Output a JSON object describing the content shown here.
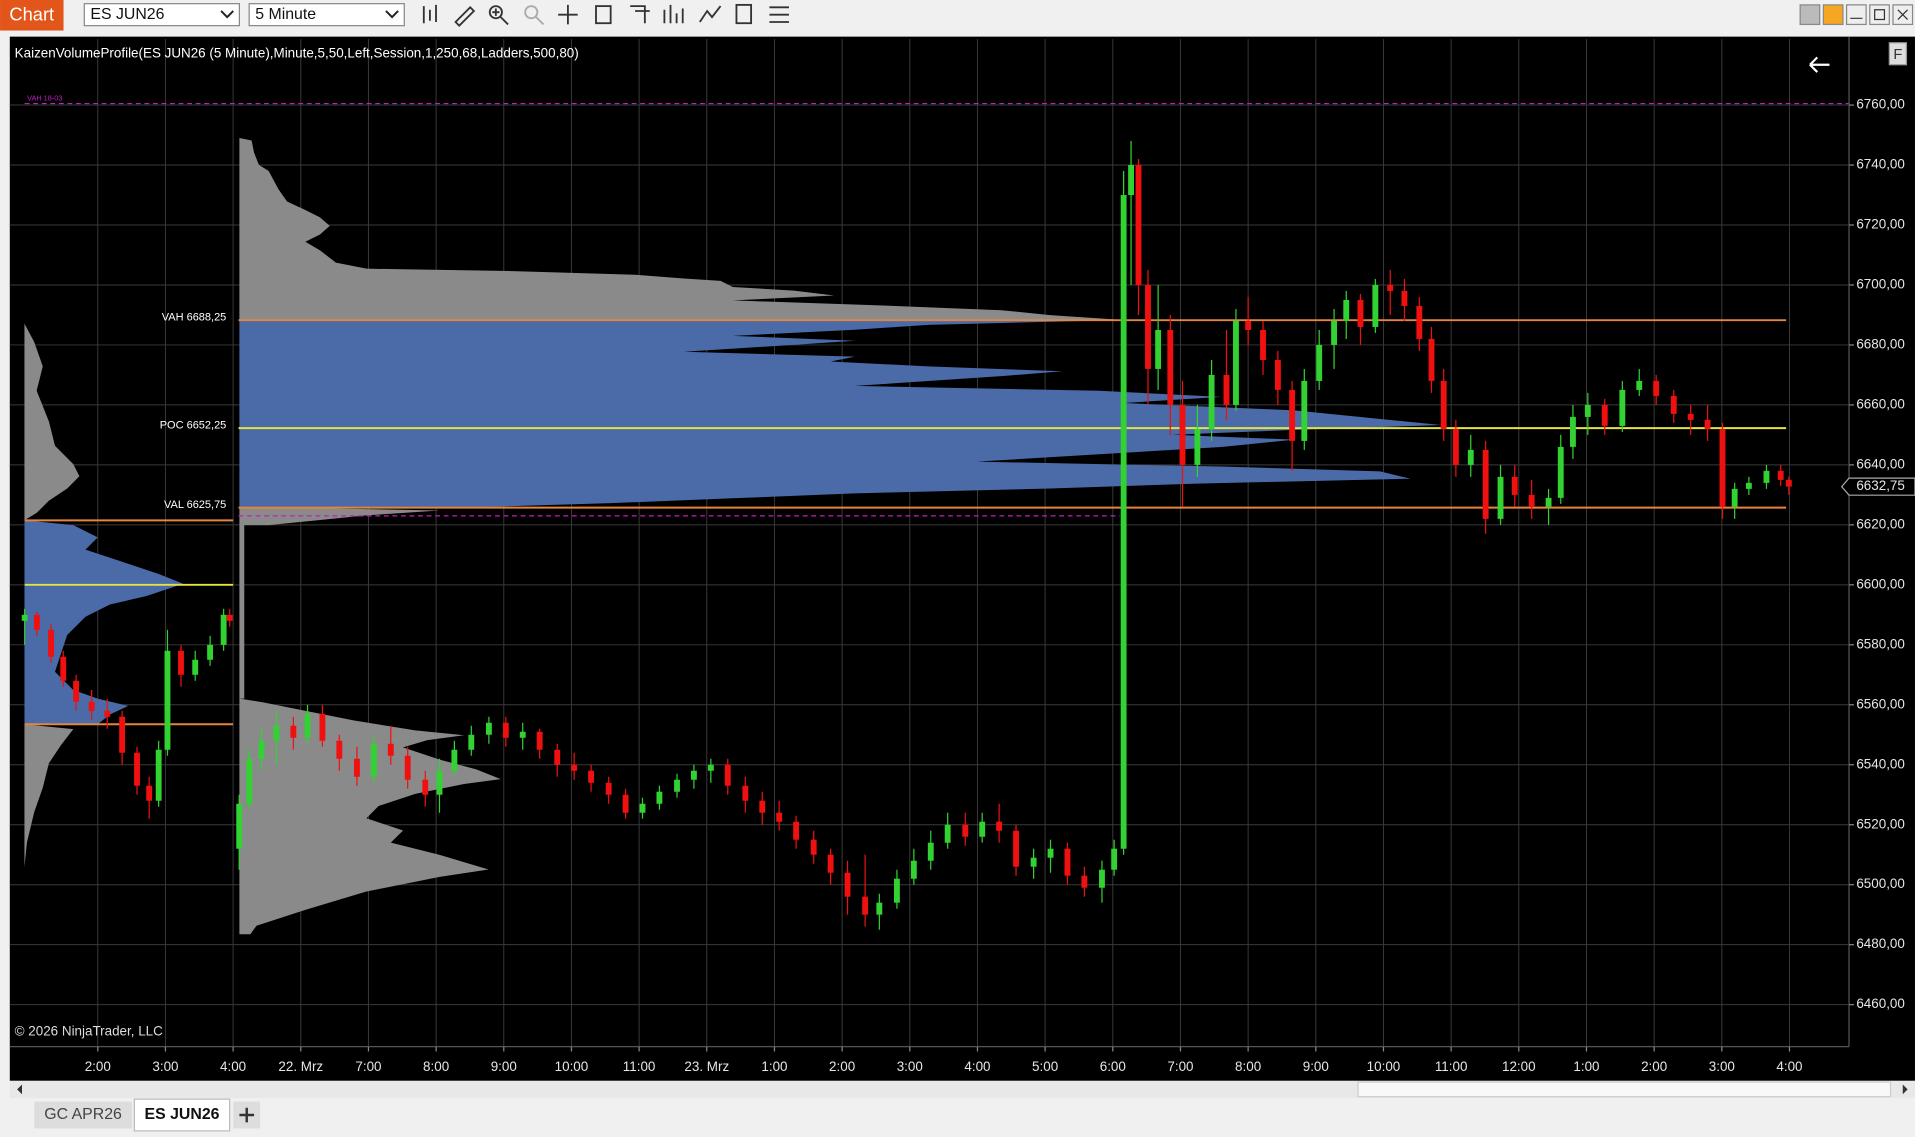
{
  "toolbar": {
    "tab": "Chart",
    "instrument": "ES JUN26",
    "interval": "5 Minute"
  },
  "side_button": "F",
  "chart_data": {
    "type": "candlestick",
    "title": "KaizenVolumeProfile(ES JUN26 (5 Minute),Minute,5,50,Left,Session,1,250,68,Ladders,500,80)",
    "copyright": "© 2026 NinjaTrader, LLC",
    "up_color": "#32d232",
    "down_color": "#f01010",
    "x": [
      -1.08,
      -0.9,
      -0.69,
      -0.51,
      -0.32,
      -0.09,
      0.14,
      0.36,
      0.58,
      0.76,
      0.9,
      1.03,
      1.23,
      1.44,
      1.66,
      1.86,
      1.95,
      2.09,
      2.24,
      2.42,
      2.64,
      2.89,
      3.1,
      3.32,
      3.57,
      3.83,
      4.08,
      4.33,
      4.58,
      4.84,
      5.05,
      5.27,
      5.52,
      5.78,
      6.03,
      6.28,
      6.53,
      6.79,
      7.04,
      7.29,
      7.55,
      7.8,
      8.05,
      8.3,
      8.56,
      8.81,
      9.06,
      9.31,
      9.57,
      9.82,
      10.07,
      10.32,
      10.58,
      10.83,
      11.08,
      11.34,
      11.55,
      11.81,
      12.06,
      12.31,
      12.56,
      12.82,
      13.07,
      13.32,
      13.57,
      13.83,
      14.08,
      14.33,
      14.58,
      14.84,
      15.02,
      15.16,
      15.27,
      15.38,
      15.52,
      15.67,
      15.85,
      16.03,
      16.25,
      16.46,
      16.68,
      16.82,
      17.0,
      17.22,
      17.44,
      17.65,
      17.83,
      18.05,
      18.27,
      18.45,
      18.66,
      18.88,
      19.1,
      19.31,
      19.53,
      19.71,
      19.89,
      20.07,
      20.29,
      20.51,
      20.73,
      20.94,
      21.19,
      21.44,
      21.62,
      21.8,
      22.02,
      22.27,
      22.53,
      22.78,
      23.03,
      23.29,
      23.54,
      23.79,
      24.01,
      24.19,
      24.4,
      24.66,
      24.87,
      24.99
    ],
    "open": [
      6588,
      6590,
      6585,
      6576,
      6568,
      6561,
      6558,
      6556,
      6544,
      6533,
      6528,
      6545,
      6578,
      6570,
      6575,
      6580,
      6590,
      6512,
      6527,
      6542,
      6548,
      6553,
      6549,
      6557,
      6548,
      6542,
      6536,
      6547,
      6543,
      6535,
      6530,
      6538,
      6545,
      6550,
      6554,
      6549,
      6551,
      6545,
      6540,
      6538,
      6534,
      6530,
      6524,
      6527,
      6531,
      6535,
      6538,
      6540,
      6533,
      6528,
      6524,
      6521,
      6515,
      6510,
      6504,
      6496,
      6490,
      6494,
      6502,
      6508,
      6514,
      6520,
      6516,
      6521,
      6518,
      6506,
      6509,
      6512,
      6503,
      6499,
      6505,
      6512,
      6730,
      6740,
      6700,
      6672,
      6685,
      6660,
      6640,
      6652,
      6670,
      6660,
      6688,
      6685,
      6675,
      6665,
      6648,
      6668,
      6680,
      6688,
      6695,
      6686,
      6700,
      6698,
      6693,
      6682,
      6668,
      6652,
      6640,
      6645,
      6622,
      6636,
      6630,
      6626,
      6629,
      6646,
      6656,
      6660,
      6653,
      6665,
      6668,
      6663,
      6657,
      6655,
      6652,
      6626,
      6632,
      6634,
      6638,
      6635
    ],
    "high": [
      6592,
      6591,
      6587,
      6578,
      6570,
      6565,
      6562,
      6558,
      6546,
      6536,
      6548,
      6585,
      6580,
      6578,
      6583,
      6592,
      6592,
      6530,
      6545,
      6552,
      6558,
      6556,
      6560,
      6560,
      6550,
      6546,
      6550,
      6553,
      6546,
      6538,
      6542,
      6548,
      6553,
      6556,
      6556,
      6554,
      6552,
      6547,
      6544,
      6540,
      6536,
      6532,
      6529,
      6533,
      6537,
      6540,
      6542,
      6542,
      6536,
      6531,
      6528,
      6523,
      6518,
      6512,
      6508,
      6510,
      6497,
      6505,
      6512,
      6518,
      6524,
      6524,
      6524,
      6527,
      6520,
      6512,
      6515,
      6514,
      6506,
      6508,
      6515,
      6738,
      6748,
      6742,
      6705,
      6700,
      6690,
      6668,
      6660,
      6675,
      6685,
      6692,
      6696,
      6688,
      6678,
      6668,
      6672,
      6685,
      6692,
      6698,
      6697,
      6702,
      6705,
      6702,
      6696,
      6686,
      6672,
      6655,
      6650,
      6648,
      6640,
      6640,
      6635,
      6632,
      6650,
      6660,
      6664,
      6662,
      6668,
      6672,
      6670,
      6665,
      6660,
      6660,
      6654,
      6634,
      6636,
      6640,
      6640,
      6636
    ],
    "low": [
      6580,
      6583,
      6574,
      6566,
      6558,
      6555,
      6552,
      6540,
      6530,
      6522,
      6526,
      6543,
      6566,
      6568,
      6573,
      6578,
      6586,
      6505,
      6525,
      6538,
      6540,
      6545,
      6547,
      6546,
      6538,
      6533,
      6534,
      6540,
      6532,
      6526,
      6524,
      6536,
      6543,
      6547,
      6546,
      6545,
      6542,
      6536,
      6535,
      6531,
      6527,
      6522,
      6522,
      6525,
      6529,
      6532,
      6534,
      6530,
      6524,
      6520,
      6518,
      6512,
      6507,
      6500,
      6490,
      6486,
      6485,
      6492,
      6500,
      6505,
      6512,
      6513,
      6514,
      6514,
      6503,
      6502,
      6504,
      6500,
      6496,
      6494,
      6503,
      6510,
      6700,
      6690,
      6660,
      6665,
      6650,
      6626,
      6636,
      6648,
      6655,
      6658,
      6680,
      6670,
      6660,
      6638,
      6645,
      6665,
      6672,
      6682,
      6680,
      6684,
      6690,
      6688,
      6678,
      6664,
      6648,
      6636,
      6636,
      6617,
      6620,
      6626,
      6622,
      6620,
      6627,
      6642,
      6650,
      6650,
      6651,
      6663,
      6660,
      6654,
      6650,
      6648,
      6622,
      6622,
      6630,
      6632,
      6633,
      6630
    ],
    "close": [
      6590,
      6585,
      6576,
      6568,
      6561,
      6558,
      6556,
      6544,
      6533,
      6528,
      6545,
      6578,
      6570,
      6575,
      6580,
      6590,
      6588,
      6527,
      6542,
      6548,
      6553,
      6549,
      6557,
      6548,
      6542,
      6536,
      6547,
      6543,
      6535,
      6530,
      6538,
      6545,
      6550,
      6554,
      6549,
      6551,
      6545,
      6540,
      6538,
      6534,
      6530,
      6524,
      6527,
      6531,
      6535,
      6538,
      6540,
      6533,
      6528,
      6524,
      6521,
      6515,
      6510,
      6504,
      6496,
      6490,
      6494,
      6502,
      6508,
      6514,
      6520,
      6516,
      6521,
      6518,
      6506,
      6509,
      6512,
      6503,
      6499,
      6505,
      6512,
      6730,
      6740,
      6700,
      6672,
      6685,
      6660,
      6640,
      6652,
      6670,
      6660,
      6688,
      6685,
      6675,
      6665,
      6648,
      6668,
      6680,
      6688,
      6695,
      6686,
      6700,
      6698,
      6693,
      6682,
      6668,
      6652,
      6640,
      6645,
      6622,
      6636,
      6630,
      6626,
      6629,
      6646,
      6656,
      6660,
      6653,
      6665,
      6668,
      6663,
      6657,
      6655,
      6652,
      6626,
      6632,
      6634,
      6638,
      6635,
      6632.75
    ],
    "xlim": [
      -1.3,
      25.88
    ],
    "xticks": [
      {
        "value": 0,
        "label": "2:00"
      },
      {
        "value": 1,
        "label": "3:00"
      },
      {
        "value": 2,
        "label": "4:00"
      },
      {
        "value": 3,
        "label": "22. Mrz"
      },
      {
        "value": 4,
        "label": "7:00"
      },
      {
        "value": 5,
        "label": "8:00"
      },
      {
        "value": 6,
        "label": "9:00"
      },
      {
        "value": 7,
        "label": "10:00"
      },
      {
        "value": 8,
        "label": "11:00"
      },
      {
        "value": 9,
        "label": "23. Mrz"
      },
      {
        "value": 10,
        "label": "1:00"
      },
      {
        "value": 11,
        "label": "2:00"
      },
      {
        "value": 12,
        "label": "3:00"
      },
      {
        "value": 13,
        "label": "4:00"
      },
      {
        "value": 14,
        "label": "5:00"
      },
      {
        "value": 15,
        "label": "6:00"
      },
      {
        "value": 16,
        "label": "7:00"
      },
      {
        "value": 17,
        "label": "8:00"
      },
      {
        "value": 18,
        "label": "9:00"
      },
      {
        "value": 19,
        "label": "10:00"
      },
      {
        "value": 20,
        "label": "11:00"
      },
      {
        "value": 21,
        "label": "12:00"
      },
      {
        "value": 22,
        "label": "1:00"
      },
      {
        "value": 23,
        "label": "2:00"
      },
      {
        "value": 24,
        "label": "3:00"
      },
      {
        "value": 25,
        "label": "4:00"
      }
    ],
    "ylim": [
      6446,
      6782
    ],
    "yticks": [
      {
        "value": 6460,
        "label": "6460,00"
      },
      {
        "value": 6480,
        "label": "6480,00"
      },
      {
        "value": 6500,
        "label": "6500,00"
      },
      {
        "value": 6520,
        "label": "6520,00"
      },
      {
        "value": 6540,
        "label": "6540,00"
      },
      {
        "value": 6560,
        "label": "6560,00"
      },
      {
        "value": 6580,
        "label": "6580,00"
      },
      {
        "value": 6600,
        "label": "6600,00"
      },
      {
        "value": 6620,
        "label": "6620,00"
      },
      {
        "value": 6640,
        "label": "6640,00"
      },
      {
        "value": 6660,
        "label": "6660,00"
      },
      {
        "value": 6680,
        "label": "6680,00"
      },
      {
        "value": 6700,
        "label": "6700,00"
      },
      {
        "value": 6720,
        "label": "6720,00"
      },
      {
        "value": 6740,
        "label": "6740,00"
      },
      {
        "value": 6760,
        "label": "6760,00"
      }
    ],
    "grid": true,
    "levels": [
      {
        "label": "VAH 18-03",
        "value": 6760.5,
        "color": "#c020c0",
        "dashed": true,
        "from": -1.08,
        "to": 25.88
      },
      {
        "value": 6623,
        "color": "#c020c0",
        "dashed": true,
        "from": 2.08,
        "to": 15.1
      },
      {
        "label": "VAH 6688,25",
        "value": 6688.25,
        "color": "#e8843c",
        "from": 2.08,
        "to": 24.95
      },
      {
        "label": "POC 6652,25",
        "value": 6652.25,
        "color": "#e4e440",
        "from": 2.08,
        "to": 24.95
      },
      {
        "label": "VAL 6625,75",
        "value": 6625.75,
        "color": "#e8843c",
        "from": 2.08,
        "to": 24.95
      },
      {
        "value": 6621.5,
        "color": "#e8843c",
        "from": -1.08,
        "to": 2.0
      },
      {
        "value": 6600,
        "color": "#e4e440",
        "from": -1.08,
        "to": 2.0
      },
      {
        "value": 6553.5,
        "color": "#e8843c",
        "from": -1.08,
        "to": 2.0
      }
    ],
    "last_price": {
      "value": 6632.75,
      "label": "6632,75"
    }
  },
  "tabs": [
    "GC APR26",
    "ES JUN26"
  ]
}
